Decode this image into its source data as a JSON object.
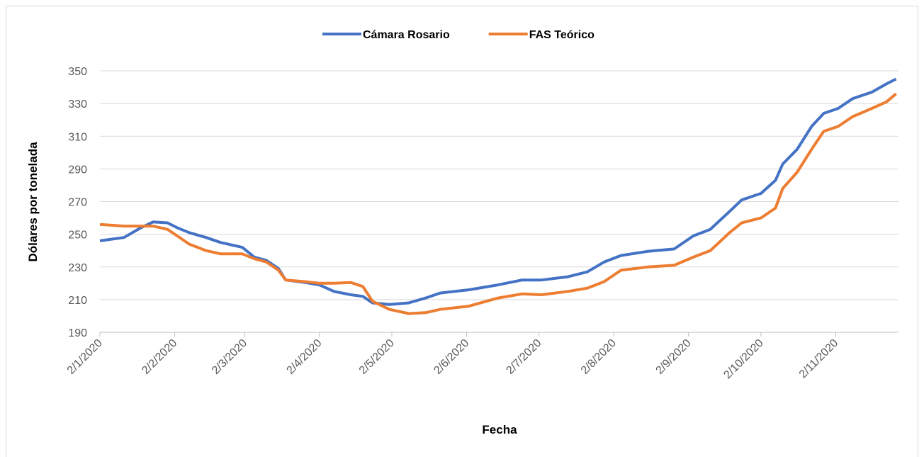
{
  "chart_data": {
    "type": "line",
    "x_label": "Fecha",
    "y_label": "Dólares por tonelada",
    "x": [
      "2/1/2020",
      "12/1/2020",
      "19/1/2020",
      "24/1/2020",
      "30/1/2020",
      "3/2/2020",
      "8/2/2020",
      "15/2/2020",
      "21/2/2020",
      "1/3/2020",
      "6/3/2020",
      "11/3/2020",
      "16/3/2020",
      "19/3/2020",
      "27/3/2020",
      "2/4/2020",
      "8/4/2020",
      "15/4/2020",
      "20/4/2020",
      "24/4/2020",
      "1/5/2020",
      "9/5/2020",
      "16/5/2020",
      "22/5/2020",
      "3/6/2020",
      "15/6/2020",
      "25/6/2020",
      "3/7/2020",
      "14/7/2020",
      "22/7/2020",
      "29/7/2020",
      "5/8/2020",
      "16/8/2020",
      "27/8/2020",
      "4/9/2020",
      "11/9/2020",
      "19/9/2020",
      "24/9/2020",
      "2/10/2020",
      "8/10/2020",
      "11/10/2020",
      "17/10/2020",
      "23/10/2020",
      "28/10/2020",
      "3/11/2020",
      "9/11/2020",
      "17/11/2020",
      "23/11/2020",
      "27/11/2020"
    ],
    "series": [
      {
        "name": "Cámara Rosario",
        "color": "#4472c4",
        "values": [
          246,
          248,
          254,
          257.5,
          257,
          254,
          251,
          248,
          245,
          242,
          236,
          234,
          229,
          222,
          220.5,
          219,
          215,
          213,
          212,
          208,
          207,
          208,
          211,
          214,
          216,
          219,
          222,
          222,
          224,
          227,
          233,
          237,
          239.5,
          241,
          249,
          253,
          264,
          271,
          275,
          283,
          293,
          302,
          316,
          324,
          327,
          333,
          337,
          342,
          345
        ]
      },
      {
        "name": "FAS Teórico",
        "color": "#ed7d31",
        "values": [
          256,
          255,
          255,
          255,
          253,
          249,
          244,
          240,
          238,
          238,
          235,
          233,
          228,
          222,
          221,
          220,
          220,
          220.5,
          218,
          209,
          204,
          201.5,
          202,
          204,
          206,
          211,
          213.5,
          213,
          215,
          217,
          221,
          228,
          230,
          231,
          236,
          240,
          251,
          257,
          260,
          266,
          278,
          288,
          302,
          313,
          316,
          322,
          327,
          331,
          336
        ]
      }
    ],
    "xlim": [
      "2/1/2020",
      "28/11/2020"
    ],
    "xticks": [
      "2/1/2020",
      "2/2/2020",
      "2/3/2020",
      "2/4/2020",
      "2/5/2020",
      "2/6/2020",
      "2/7/2020",
      "2/8/2020",
      "2/9/2020",
      "2/10/2020",
      "2/11/2020"
    ],
    "ylim": [
      190,
      350
    ],
    "yticks": [
      190,
      210,
      230,
      250,
      270,
      290,
      310,
      330,
      350
    ],
    "grid": true
  }
}
